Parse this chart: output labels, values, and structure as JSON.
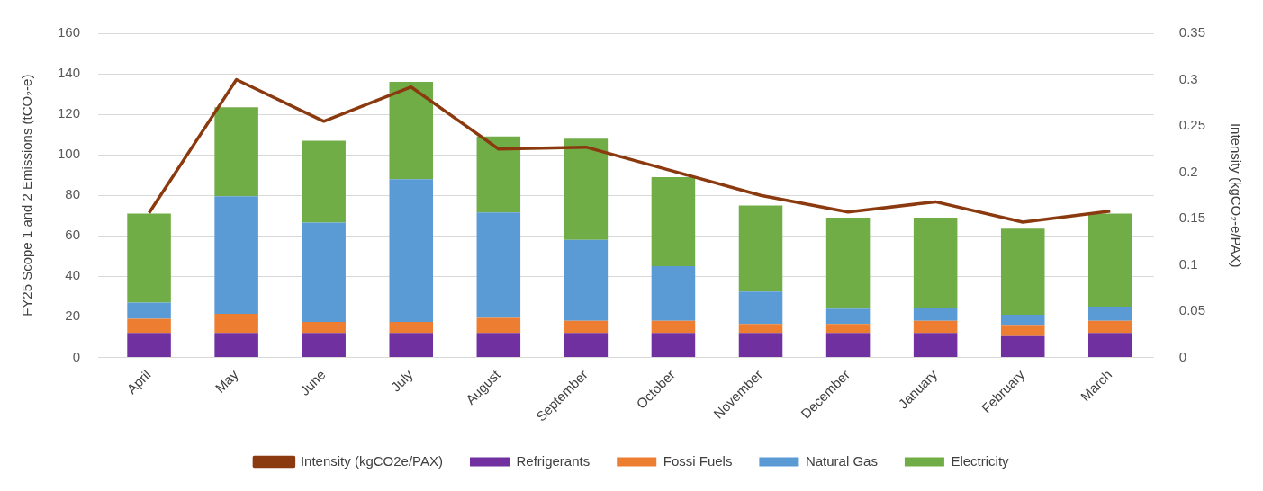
{
  "chart_data": {
    "type": "bar",
    "stacked": true,
    "categories": [
      "April",
      "May",
      "June",
      "July",
      "August",
      "September",
      "October",
      "November",
      "December",
      "January",
      "February",
      "March"
    ],
    "xlabel": null,
    "ylabel": "FY25 Scope 1 and 2 Emissions (tCO₂-e)",
    "y2label": "Intensity (kgCO₂-e/PAX)",
    "ylim": [
      0,
      160
    ],
    "yticks": [
      0,
      20,
      40,
      60,
      80,
      100,
      120,
      140,
      160
    ],
    "y2lim": [
      0,
      0.35
    ],
    "y2ticks": [
      0,
      0.05,
      0.1,
      0.15,
      0.2,
      0.25,
      0.3,
      0.35
    ],
    "grid": "y",
    "legend": "bottom",
    "marker": "none",
    "series": [
      {
        "name": "Refrigerants",
        "color": "#7030a0",
        "values": [
          12,
          12,
          12,
          12,
          12,
          12,
          12,
          12,
          12,
          12,
          10.5,
          12
        ]
      },
      {
        "name": "Fossi Fuels",
        "color": "#ed7d31",
        "values": [
          7,
          9.5,
          5.5,
          5.5,
          7.5,
          6,
          6,
          4.5,
          4.5,
          6,
          5.5,
          6
        ]
      },
      {
        "name": "Natural Gas",
        "color": "#5b9bd5",
        "values": [
          8,
          58,
          49,
          70.5,
          52,
          40,
          27,
          16,
          7.5,
          6.5,
          5,
          7
        ]
      },
      {
        "name": "Electricity",
        "color": "#70ad47",
        "values": [
          44,
          44,
          40.5,
          48,
          37.5,
          50,
          44,
          42.5,
          45,
          44.5,
          42.5,
          46
        ]
      },
      {
        "name": "Intensity (kgCO2e/PAX)",
        "type": "line",
        "axis": "y2",
        "color": "#8b3a0f",
        "values": [
          0.156,
          0.3,
          0.255,
          0.292,
          0.225,
          0.227,
          0.201,
          0.175,
          0.157,
          0.168,
          0.146,
          0.158
        ]
      }
    ]
  }
}
